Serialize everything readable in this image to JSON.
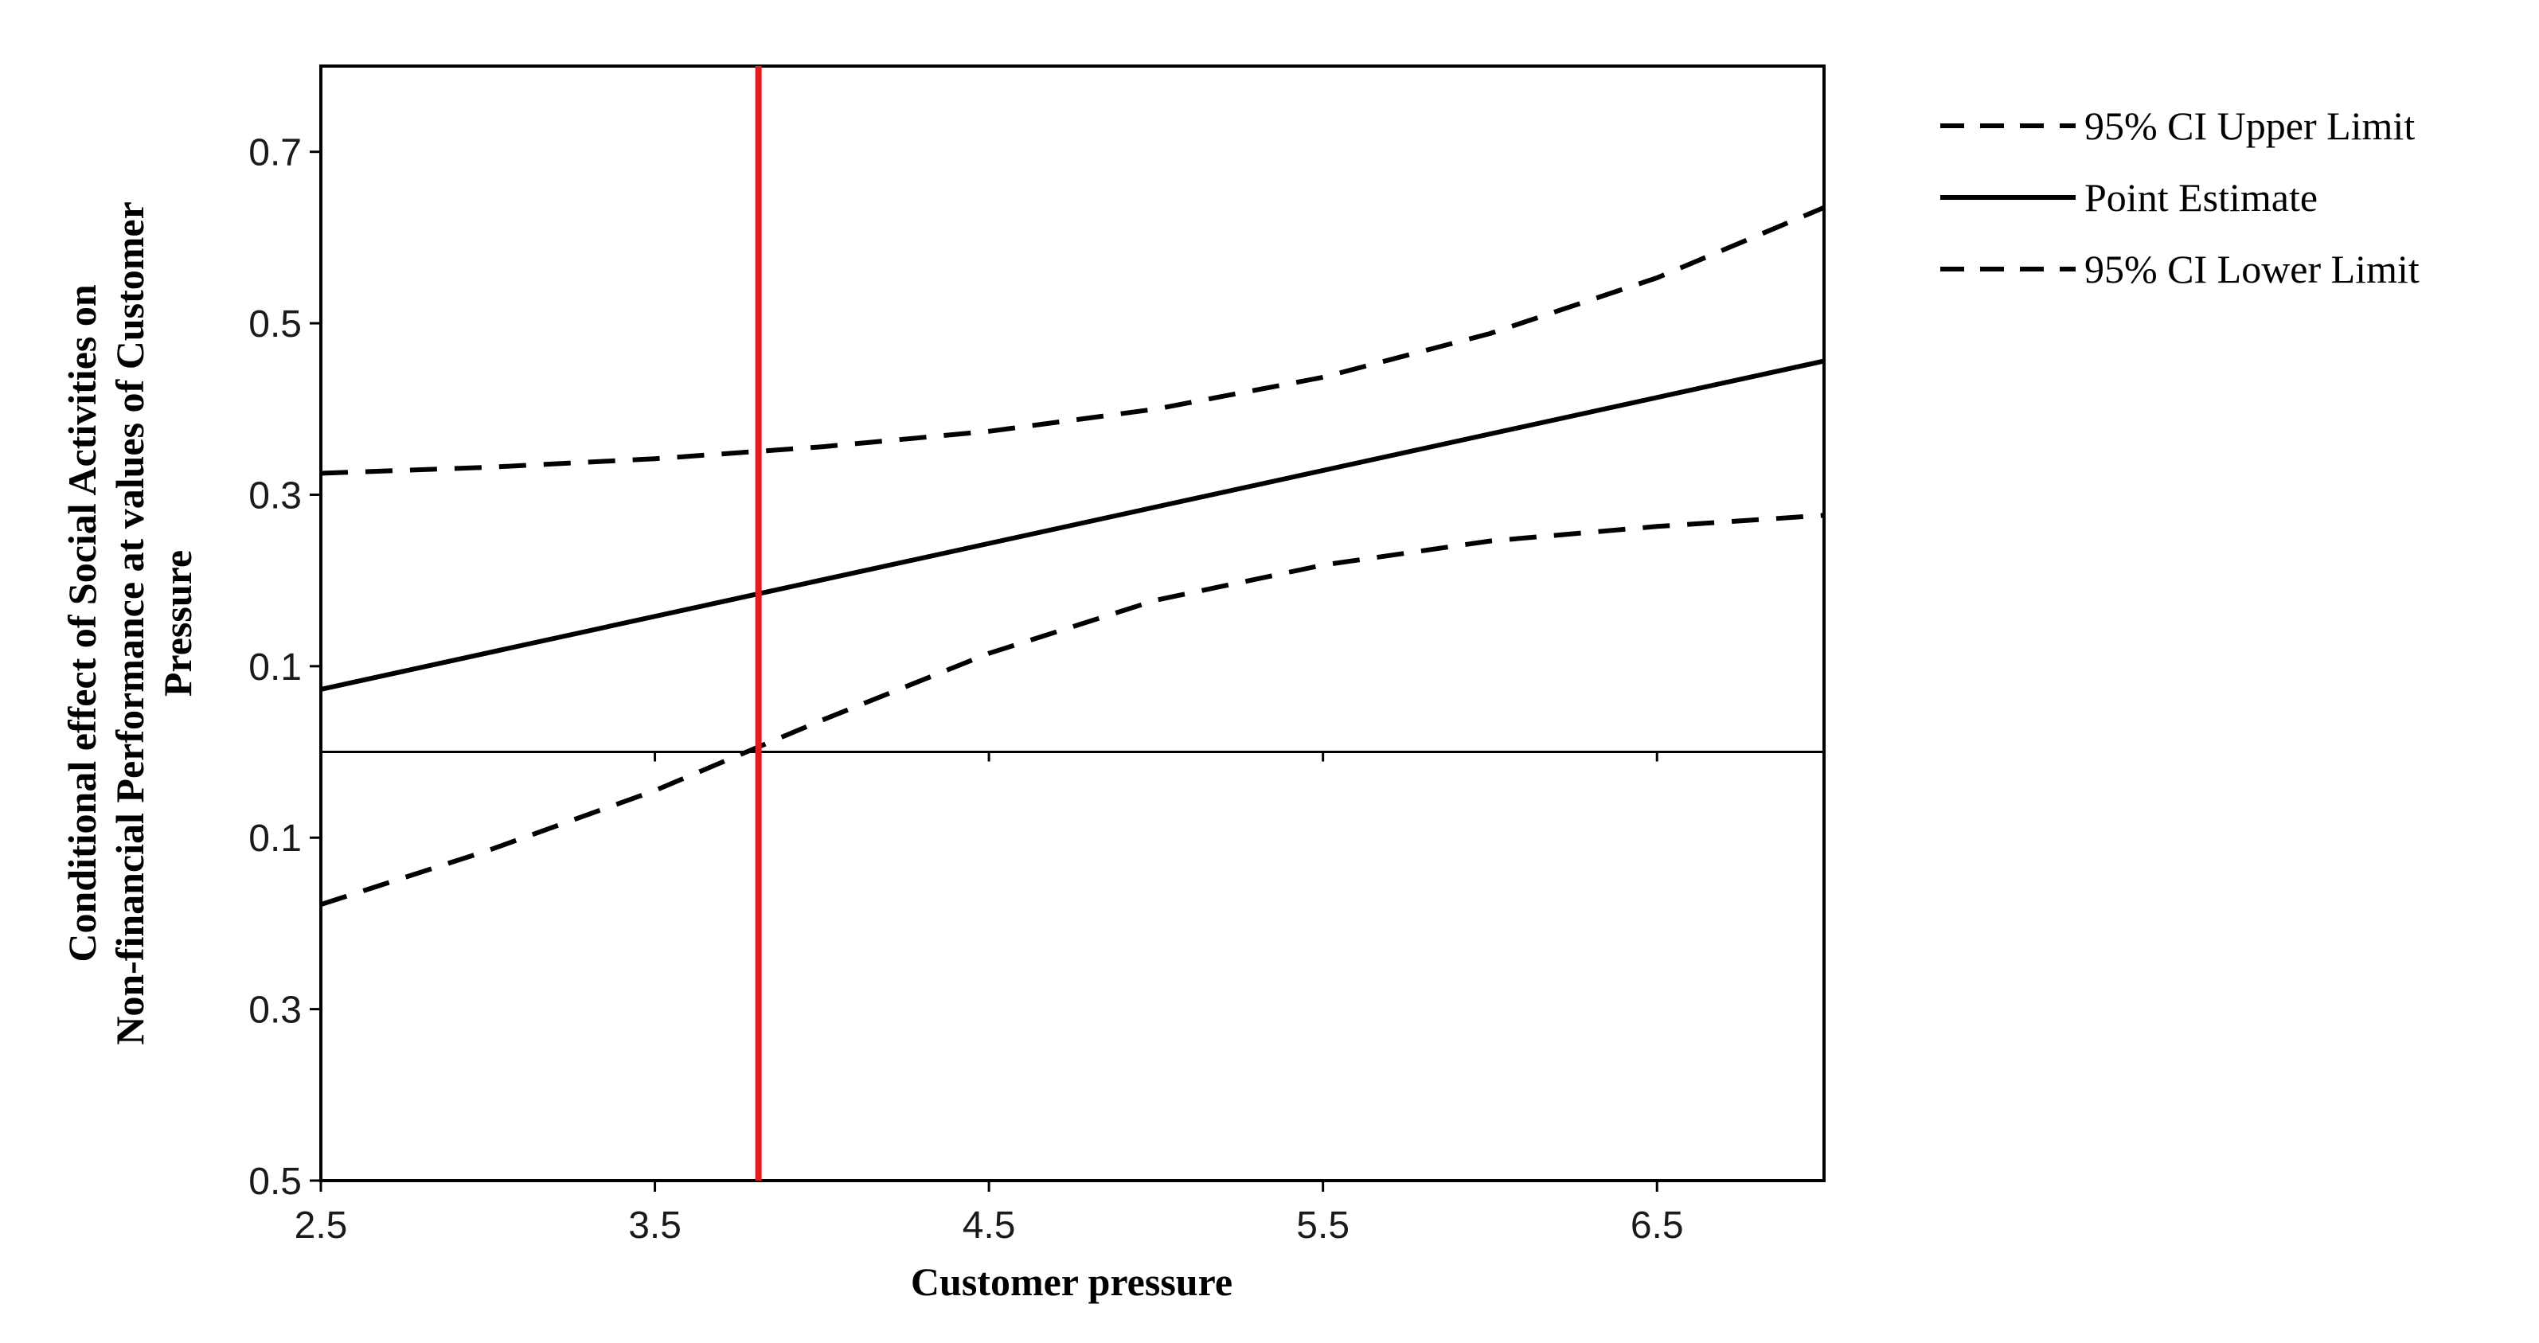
{
  "chart_data": {
    "type": "line",
    "title": "",
    "xlabel": "Customer pressure",
    "ylabel_lines": [
      "Conditional effect of Social  Activities on",
      "Non-financial Performance at values of Customer",
      "Pressure"
    ],
    "xlim": [
      2.5,
      7.0
    ],
    "ylim": [
      -0.5,
      0.8
    ],
    "x_ticks": [
      {
        "value": 2.5,
        "label": "2.5"
      },
      {
        "value": 3.5,
        "label": "3.5"
      },
      {
        "value": 4.5,
        "label": "4.5"
      },
      {
        "value": 5.5,
        "label": "5.5"
      },
      {
        "value": 6.5,
        "label": "6.5"
      }
    ],
    "y_ticks": [
      {
        "value": 0.7,
        "label": "0.7"
      },
      {
        "value": 0.5,
        "label": "0.5"
      },
      {
        "value": 0.3,
        "label": "0.3"
      },
      {
        "value": 0.1,
        "label": "0.1"
      },
      {
        "value": -0.1,
        "label": "0.1"
      },
      {
        "value": -0.3,
        "label": "0.3"
      },
      {
        "value": -0.5,
        "label": "0.5"
      }
    ],
    "zero_line": 0,
    "reference_line": {
      "x": 3.81,
      "color": "#e8191c"
    },
    "legend_position": "top-right, outside plot",
    "series": [
      {
        "name": "95% CI Upper Limit",
        "style": "dashed",
        "color": "#000000",
        "x": [
          2.5,
          3.0,
          3.5,
          4.0,
          4.5,
          5.0,
          5.5,
          6.0,
          6.5,
          7.0
        ],
        "values": [
          0.325,
          0.332,
          0.342,
          0.356,
          0.374,
          0.4,
          0.437,
          0.488,
          0.553,
          0.635
        ]
      },
      {
        "name": "Point Estimate",
        "style": "solid",
        "color": "#000000",
        "x": [
          2.5,
          7.0
        ],
        "values": [
          0.073,
          0.456
        ]
      },
      {
        "name": "95% CI Lower Limit",
        "style": "dashed",
        "color": "#000000",
        "x": [
          2.5,
          3.0,
          3.5,
          4.0,
          4.5,
          5.0,
          5.5,
          6.0,
          6.5,
          7.0
        ],
        "values": [
          -0.178,
          -0.115,
          -0.045,
          0.037,
          0.115,
          0.177,
          0.218,
          0.246,
          0.263,
          0.276
        ]
      }
    ]
  }
}
